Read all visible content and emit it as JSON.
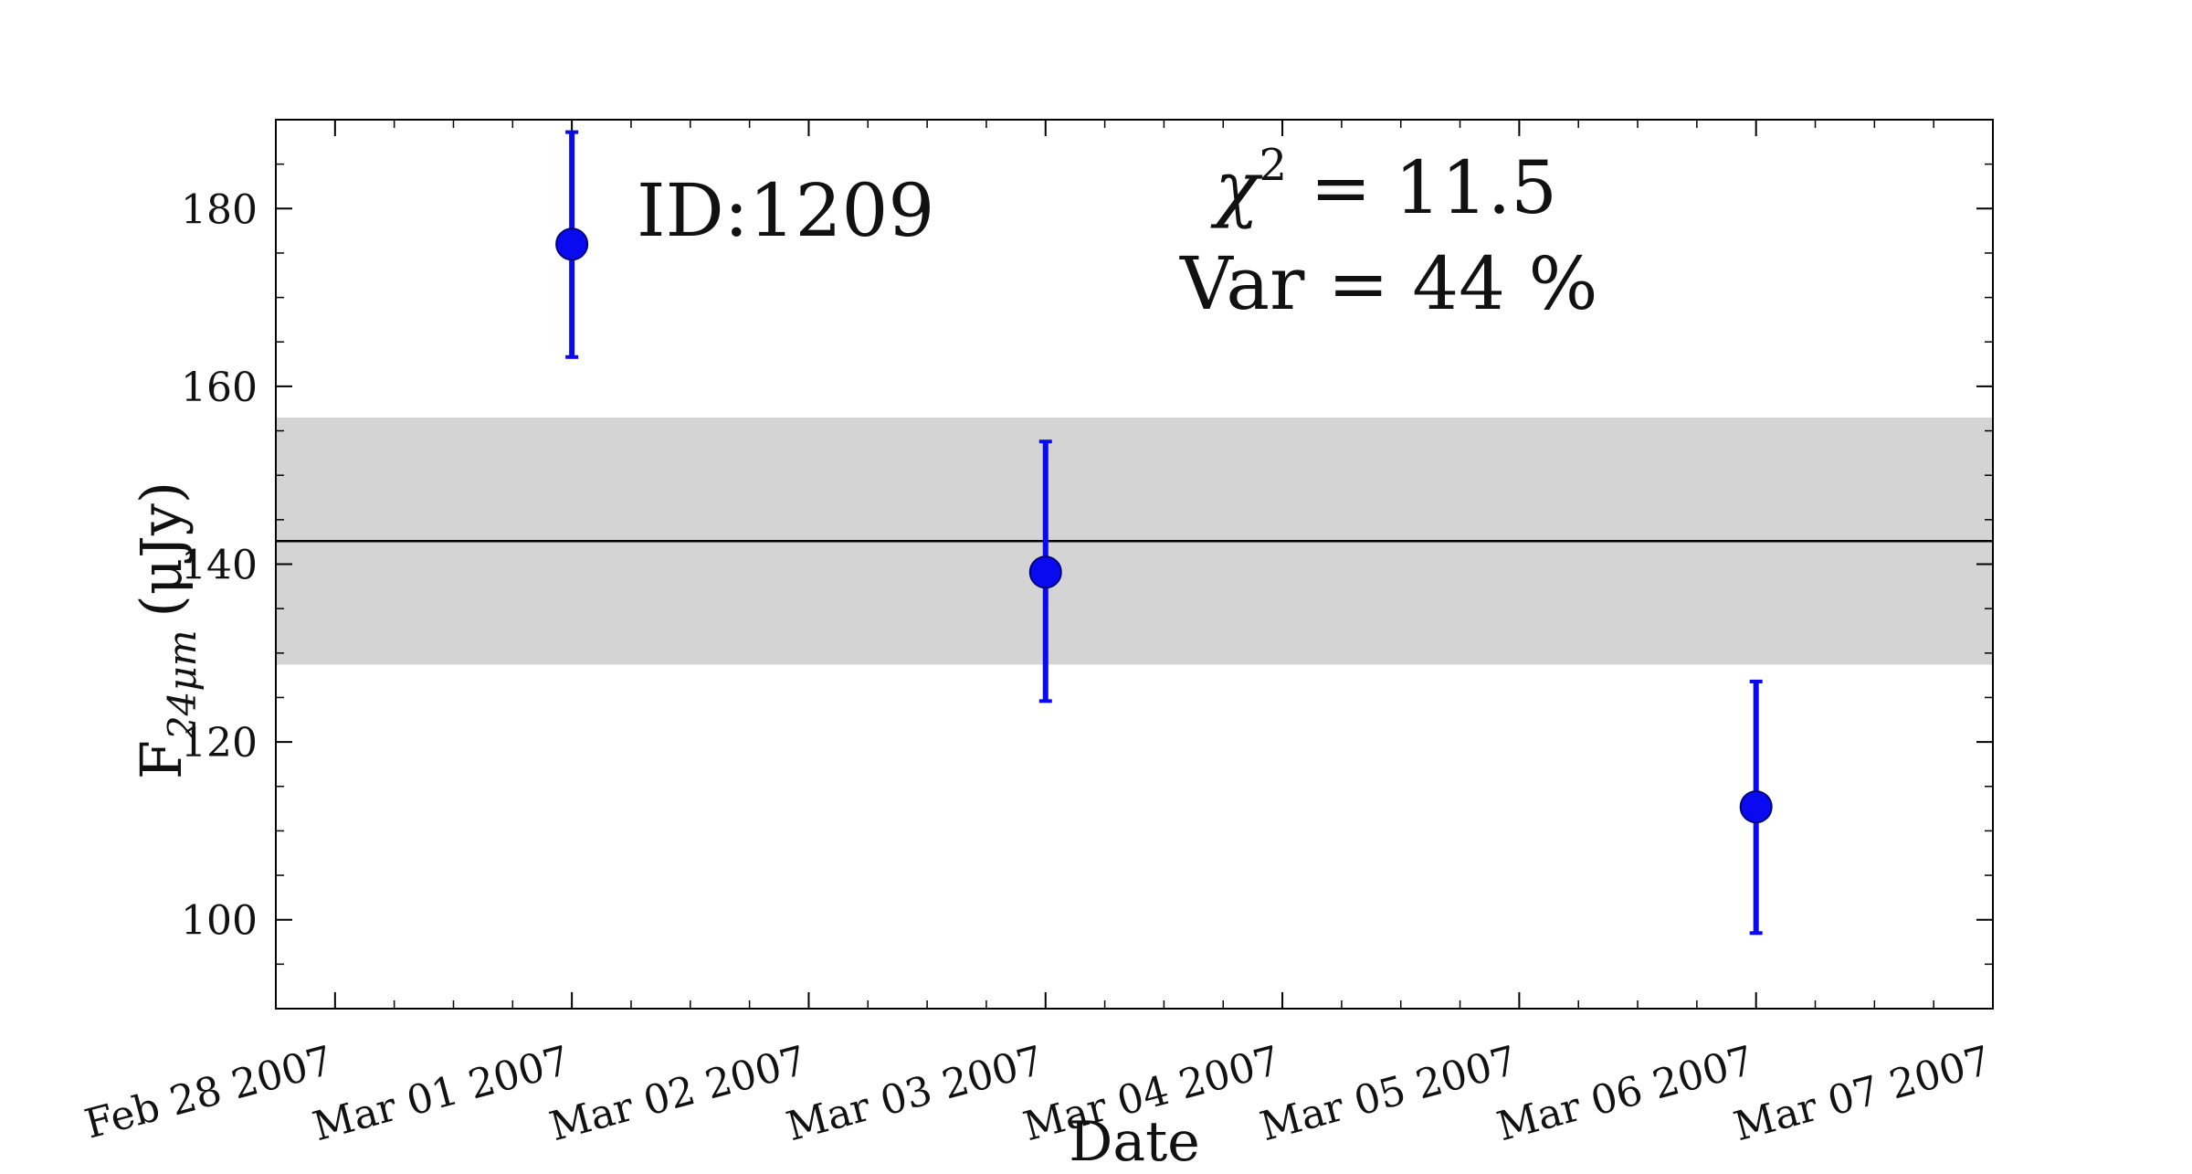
{
  "chart_data": {
    "type": "scatter",
    "title": "",
    "xlabel": "Date",
    "ylabel": {
      "base": "F",
      "sub": "24μm",
      "unit": "(μJy)"
    },
    "x_ticks": [
      "Feb 28 2007",
      "Mar 01 2007",
      "Mar 02 2007",
      "Mar 03 2007",
      "Mar 04 2007",
      "Mar 05 2007",
      "Mar 06 2007",
      "Mar 07 2007"
    ],
    "x_range": [
      "2007-02-27T18:00",
      "2007-03-07T00:00"
    ],
    "y_ticks": [
      100,
      120,
      140,
      160,
      180
    ],
    "ylim": [
      90,
      190
    ],
    "points": [
      {
        "date": "2007-03-01T00:00",
        "y": 176,
        "yerr_low": 163.3,
        "yerr_high": 188.6
      },
      {
        "date": "2007-03-03T00:00",
        "y": 139.1,
        "yerr_low": 124.6,
        "yerr_high": 153.8
      },
      {
        "date": "2007-03-06T00:00",
        "y": 112.7,
        "yerr_low": 98.5,
        "yerr_high": 126.8
      }
    ],
    "mean_line": 142.6,
    "band": [
      128.7,
      156.5
    ],
    "annotations": {
      "id_label": "ID:1209",
      "chi2_symbol": "χ",
      "chi2_power": "2",
      "chi2_rest": " = 11.5",
      "var_label": "Var = 44 %"
    },
    "colors": {
      "points": "#0a0af0",
      "band": "#d4d4d4",
      "mean_line": "#000000"
    },
    "grid": false,
    "legend": "none"
  }
}
